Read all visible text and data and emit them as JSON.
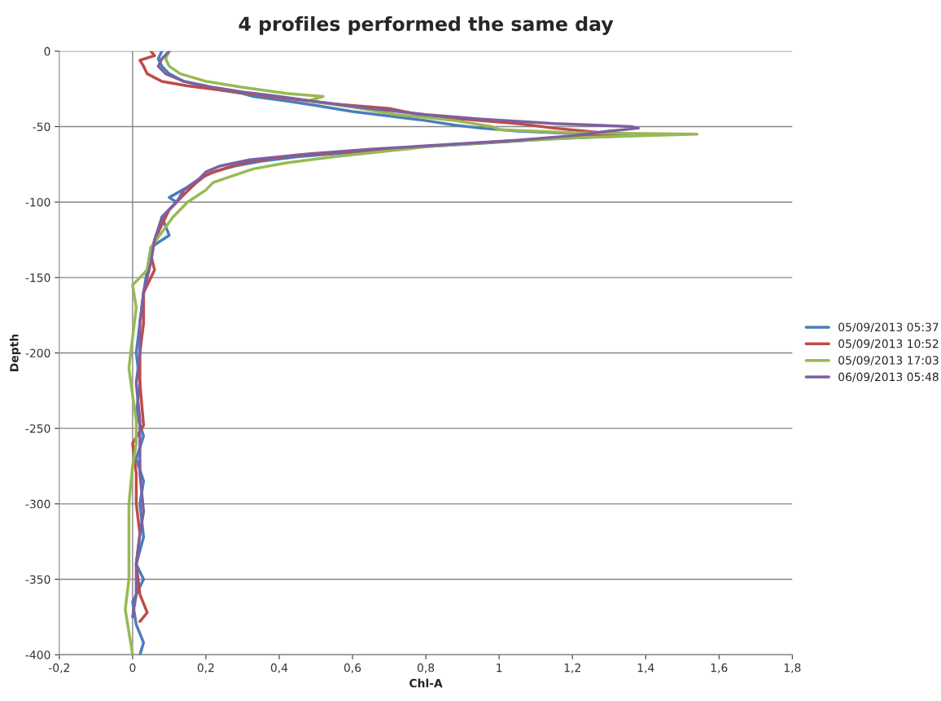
{
  "chart_data": {
    "type": "line",
    "title": "4 profiles performed the same day",
    "xlabel": "Chl-A",
    "ylabel": "Depth",
    "xlim": [
      -0.2,
      1.8
    ],
    "xticks": [
      {
        "value": -0.2,
        "label": "-0,2"
      },
      0,
      {
        "value": 0.2,
        "label": "0,2"
      },
      {
        "value": 0.4,
        "label": "0,4"
      },
      {
        "value": 0.6,
        "label": "0,6"
      },
      {
        "value": 0.8,
        "label": "0,8"
      },
      1,
      {
        "value": 1.2,
        "label": "1,2"
      },
      {
        "value": 1.4,
        "label": "1,4"
      },
      {
        "value": 1.6,
        "label": "1,6"
      },
      {
        "value": 1.8,
        "label": "1,8"
      }
    ],
    "ylim": [
      -400,
      0
    ],
    "yticks": [
      -400,
      -350,
      -300,
      -250,
      -200,
      -150,
      -100,
      -50,
      0
    ],
    "grid": "y",
    "legend": "right",
    "line_style": "solid",
    "marker": "none",
    "ref_lines": [
      {
        "axis": "x",
        "value": 0,
        "color": "#868686"
      }
    ],
    "series": [
      {
        "name": "05/09/2013 05:37",
        "color": "#4a7ebb",
        "x": [
          0.08,
          0.07,
          0.08,
          0.1,
          0.14,
          0.22,
          0.3,
          0.33,
          0.42,
          0.5,
          0.6,
          0.7,
          0.8,
          0.88,
          0.95,
          1.05,
          1.25,
          1.36,
          1.15,
          0.95,
          0.75,
          0.6,
          0.45,
          0.35,
          0.28,
          0.22,
          0.18,
          0.15,
          0.1,
          0.12,
          0.08,
          0.1,
          0.05,
          0.04,
          0.03,
          0.02,
          0.01,
          0.02,
          0.01,
          0.03,
          0.01,
          0.03,
          0.02,
          0.03,
          0.01,
          0.03,
          0.0,
          0.01,
          0.03,
          0.02
        ],
        "values": [
          0,
          -5,
          -10,
          -15,
          -20,
          -25,
          -28,
          -30,
          -33,
          -36,
          -40,
          -43,
          -46,
          -49,
          -51,
          -53,
          -55,
          -56,
          -58,
          -61,
          -64,
          -67,
          -70,
          -73,
          -76,
          -80,
          -85,
          -90,
          -97,
          -100,
          -110,
          -122,
          -130,
          -145,
          -160,
          -180,
          -200,
          -220,
          -240,
          -255,
          -270,
          -285,
          -300,
          -322,
          -340,
          -350,
          -365,
          -380,
          -392,
          -400
        ]
      },
      {
        "name": "05/09/2013 10:52",
        "color": "#be4b48",
        "x": [
          0.05,
          0.06,
          0.02,
          0.03,
          0.04,
          0.08,
          0.15,
          0.25,
          0.38,
          0.55,
          0.7,
          0.78,
          0.9,
          1.05,
          1.15,
          1.28,
          1.32,
          1.2,
          1.0,
          0.8,
          0.62,
          0.45,
          0.32,
          0.26,
          0.2,
          0.17,
          0.14,
          0.1,
          0.08,
          0.06,
          0.05,
          0.06,
          0.03,
          0.03,
          0.02,
          0.02,
          0.03,
          0.0,
          0.01,
          0.01,
          0.02,
          0.01,
          0.02,
          0.04,
          0.02
        ],
        "values": [
          0,
          -3,
          -6,
          -10,
          -15,
          -20,
          -23,
          -26,
          -30,
          -35,
          -38,
          -42,
          -45,
          -48,
          -51,
          -54,
          -55,
          -57,
          -60,
          -63,
          -66,
          -69,
          -73,
          -77,
          -82,
          -88,
          -95,
          -105,
          -115,
          -125,
          -135,
          -145,
          -160,
          -180,
          -200,
          -220,
          -248,
          -260,
          -280,
          -300,
          -320,
          -340,
          -360,
          -372,
          -378
        ]
      },
      {
        "name": "05/09/2013 17:03",
        "color": "#98b954",
        "x": [
          0.1,
          0.09,
          0.1,
          0.13,
          0.2,
          0.3,
          0.42,
          0.52,
          0.48,
          0.6,
          0.72,
          0.88,
          0.98,
          1.0,
          1.2,
          1.54,
          1.25,
          1.0,
          0.82,
          0.7,
          0.55,
          0.42,
          0.33,
          0.28,
          0.22,
          0.2,
          0.15,
          0.11,
          0.08,
          0.05,
          0.04,
          0.0,
          0.01,
          0.0,
          -0.01,
          0.0,
          0.01,
          0.01,
          0.0,
          -0.01,
          -0.01,
          -0.01,
          -0.02,
          -0.01,
          0.0
        ],
        "values": [
          0,
          -5,
          -10,
          -15,
          -20,
          -24,
          -28,
          -30,
          -33,
          -37,
          -42,
          -46,
          -50,
          -52,
          -54,
          -55,
          -57,
          -60,
          -63,
          -66,
          -70,
          -74,
          -78,
          -82,
          -87,
          -92,
          -100,
          -110,
          -120,
          -130,
          -145,
          -155,
          -170,
          -190,
          -210,
          -228,
          -245,
          -260,
          -275,
          -300,
          -330,
          -350,
          -370,
          -385,
          -400
        ]
      },
      {
        "name": "06/09/2013 05:48",
        "color": "#7d60a0",
        "x": [
          0.1,
          0.08,
          0.07,
          0.09,
          0.14,
          0.22,
          0.3,
          0.4,
          0.52,
          0.65,
          0.8,
          0.95,
          1.15,
          1.36,
          1.38,
          1.3,
          1.2,
          1.05,
          0.85,
          0.65,
          0.48,
          0.32,
          0.24,
          0.2,
          0.18,
          0.14,
          0.12,
          0.08,
          0.06,
          0.05,
          0.03,
          0.02,
          0.02,
          0.01,
          0.02,
          0.02,
          0.02,
          0.03,
          0.02,
          0.01,
          0.01,
          0.0
        ],
        "values": [
          0,
          -5,
          -10,
          -15,
          -20,
          -24,
          -27,
          -30,
          -34,
          -38,
          -42,
          -45,
          -48,
          -50,
          -51,
          -53,
          -56,
          -59,
          -62,
          -65,
          -68,
          -72,
          -76,
          -80,
          -85,
          -92,
          -100,
          -110,
          -125,
          -140,
          -160,
          -180,
          -200,
          -220,
          -245,
          -260,
          -280,
          -305,
          -320,
          -340,
          -360,
          -375
        ]
      }
    ]
  }
}
